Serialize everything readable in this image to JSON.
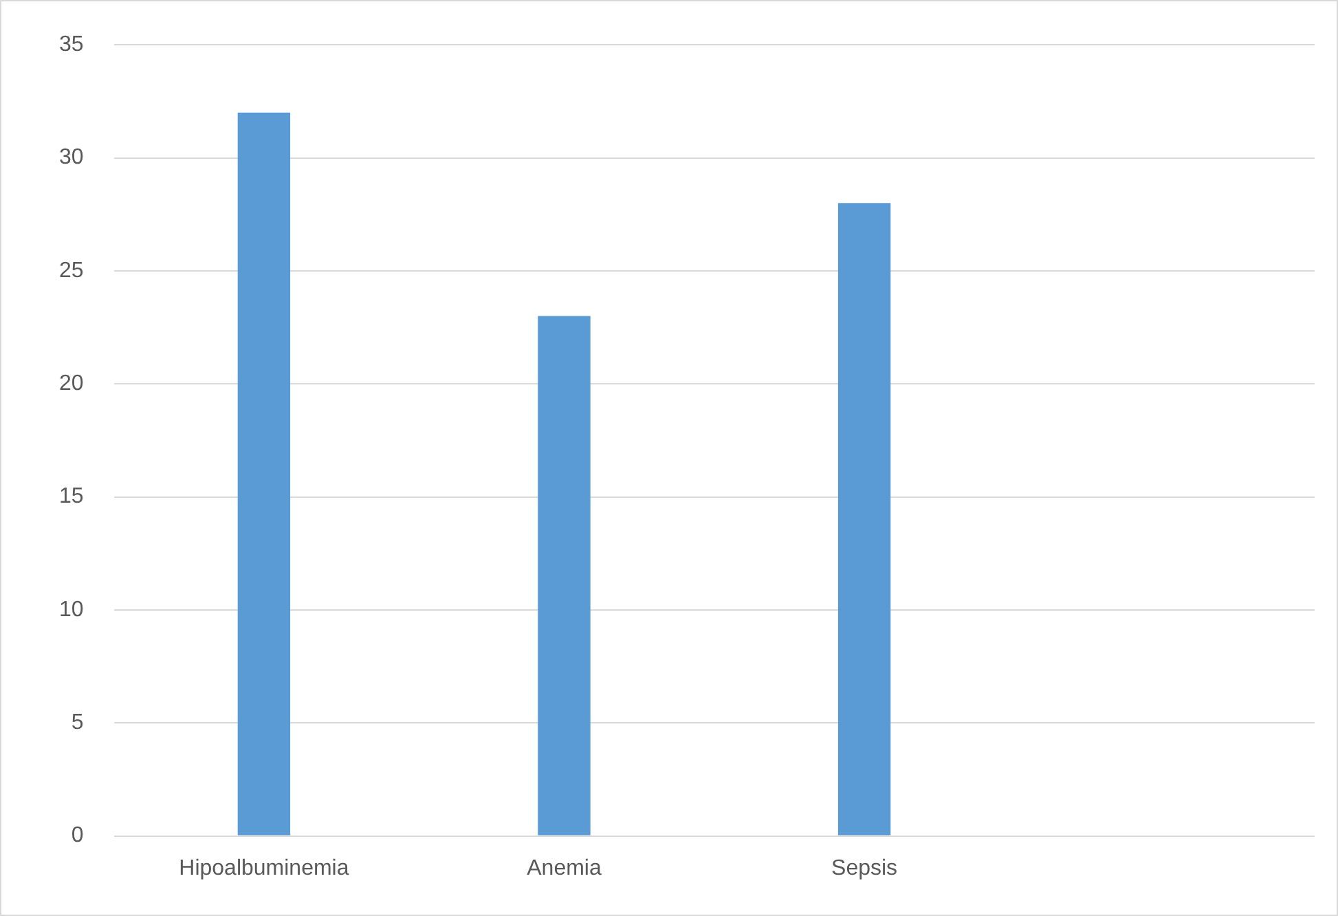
{
  "chart_data": {
    "type": "bar",
    "categories": [
      "Hipoalbuminemia",
      "Anemia",
      "Sepsis",
      null
    ],
    "values": [
      32,
      23,
      28,
      null
    ],
    "color": "#5b9bd5",
    "ylim": [
      0,
      35
    ],
    "yticks": [
      0,
      5,
      10,
      15,
      20,
      25,
      30,
      35
    ],
    "grid": "y",
    "legend": false
  }
}
